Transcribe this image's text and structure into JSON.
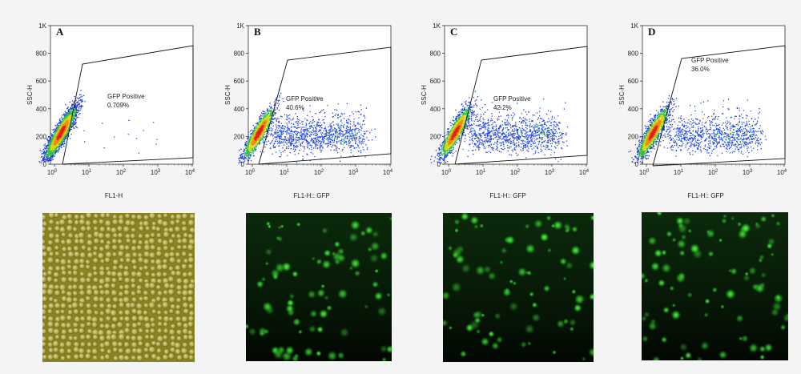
{
  "panels": [
    {
      "letter": "A",
      "ylabel": "SSC-H",
      "xlabel": "FL1-H",
      "gate_label": "GFP Positive",
      "gate_value": "0.709%"
    },
    {
      "letter": "B",
      "ylabel": "SSC-H",
      "xlabel": "FL1-H:: GFP",
      "gate_label": "GFP Positive",
      "gate_value": "40.6%"
    },
    {
      "letter": "C",
      "ylabel": "SSC-H",
      "xlabel": "FL1-H:: GFP",
      "gate_label": "GFP Positive",
      "gate_value": "42.2%"
    },
    {
      "letter": "D",
      "ylabel": "SSC-H",
      "xlabel": "FL1-H:: GFP",
      "gate_label": "GFP Positive",
      "gate_value": "36.0%"
    }
  ],
  "y_ticks": [
    "1K",
    "800",
    "600",
    "400",
    "200",
    "0"
  ],
  "x_tick_base": "10",
  "x_tick_exps": [
    "0",
    "1",
    "2",
    "3",
    "4"
  ],
  "chart_data": [
    {
      "type": "scatter",
      "title": "A",
      "xlabel": "FL1-H",
      "ylabel": "SSC-H",
      "xscale": "log",
      "xlim": [
        0.5,
        10000
      ],
      "ylim": [
        0,
        1000
      ],
      "gate": "GFP Positive",
      "gate_percent": 0.709
    },
    {
      "type": "scatter",
      "title": "B",
      "xlabel": "FL1-H:: GFP",
      "ylabel": "SSC-H",
      "xscale": "log",
      "xlim": [
        0.5,
        10000
      ],
      "ylim": [
        0,
        1000
      ],
      "gate": "GFP Positive",
      "gate_percent": 40.6
    },
    {
      "type": "scatter",
      "title": "C",
      "xlabel": "FL1-H:: GFP",
      "ylabel": "SSC-H",
      "xscale": "log",
      "xlim": [
        0.5,
        10000
      ],
      "ylim": [
        0,
        1000
      ],
      "gate": "GFP Positive",
      "gate_percent": 42.2
    },
    {
      "type": "scatter",
      "title": "D",
      "xlabel": "FL1-H:: GFP",
      "ylabel": "SSC-H",
      "xscale": "log",
      "xlim": [
        0.5,
        10000
      ],
      "ylim": [
        0,
        1000
      ],
      "gate": "GFP Positive",
      "gate_percent": 36.0
    }
  ],
  "photos": [
    {
      "kind": "brightfield"
    },
    {
      "kind": "fluorescence"
    },
    {
      "kind": "fluorescence"
    },
    {
      "kind": "fluorescence"
    }
  ]
}
